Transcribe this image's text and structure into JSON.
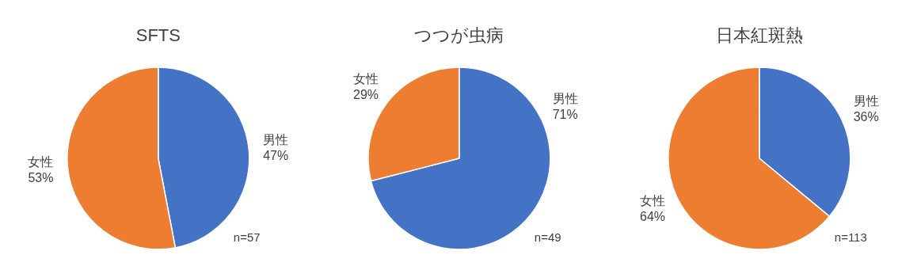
{
  "chart_data": [
    {
      "type": "pie",
      "title": "SFTS",
      "categories": [
        "男性",
        "女性"
      ],
      "values": [
        47,
        53
      ],
      "colors": [
        "#4472c4",
        "#ed7d31"
      ],
      "value_labels": [
        "47%",
        "53%"
      ],
      "annotations": [
        "n=57"
      ]
    },
    {
      "type": "pie",
      "title": "つつが虫病",
      "categories": [
        "男性",
        "女性"
      ],
      "values": [
        71,
        29
      ],
      "colors": [
        "#4472c4",
        "#ed7d31"
      ],
      "value_labels": [
        "71%",
        "29%"
      ],
      "annotations": [
        "n=49"
      ]
    },
    {
      "type": "pie",
      "title": "日本紅斑熱",
      "categories": [
        "男性",
        "女性"
      ],
      "values": [
        36,
        64
      ],
      "colors": [
        "#4472c4",
        "#ed7d31"
      ],
      "value_labels": [
        "36%",
        "64%"
      ],
      "annotations": [
        "n=113"
      ]
    }
  ]
}
